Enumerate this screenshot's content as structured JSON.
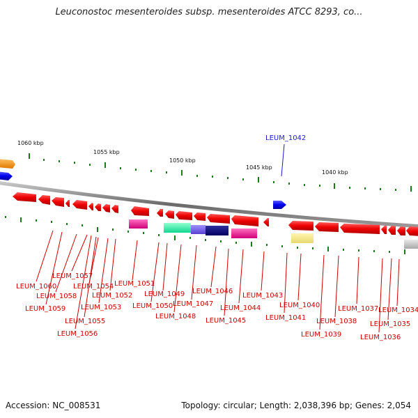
{
  "header": {
    "title": "Leuconostoc mesenteroides subsp. mesenteroides ATCC 8293, co..."
  },
  "footer": {
    "accession": "Accession: NC_008531",
    "topology": "Topology: circular; Length: 2,038,396 bp; Genes: 2,054"
  },
  "colors": {
    "forward_gene": "#1010ee",
    "reverse_gene": "#ee1111",
    "backbone": "#7a7a7a",
    "tick": "#1a7a1a",
    "label_red": "#cc0000",
    "label_blue": "#1a1acc"
  },
  "scale": {
    "ticks": [
      {
        "label": "1060 kbp"
      },
      {
        "label": "1055 kbp"
      },
      {
        "label": "1050 kbp"
      },
      {
        "label": "1045 kbp"
      },
      {
        "label": "1040 kbp"
      }
    ]
  },
  "genes": {
    "top_labels": [
      {
        "label": "LEUM_1042"
      }
    ],
    "bottom_labels": [
      {
        "label": "LEUM_1060"
      },
      {
        "label": "LEUM_1059"
      },
      {
        "label": "LEUM_1058"
      },
      {
        "label": "LEUM_1057"
      },
      {
        "label": "LEUM_1056"
      },
      {
        "label": "LEUM_1055"
      },
      {
        "label": "LEUM_1054"
      },
      {
        "label": "LEUM_1053"
      },
      {
        "label": "LEUM_1052"
      },
      {
        "label": "LEUM_1051"
      },
      {
        "label": "LEUM_1050"
      },
      {
        "label": "LEUM_1049"
      },
      {
        "label": "LEUM_1048"
      },
      {
        "label": "LEUM_1047"
      },
      {
        "label": "LEUM_1046"
      },
      {
        "label": "LEUM_1045"
      },
      {
        "label": "LEUM_1044"
      },
      {
        "label": "LEUM_1043"
      },
      {
        "label": "LEUM_1041"
      },
      {
        "label": "LEUM_1040"
      },
      {
        "label": "LEUM_1039"
      },
      {
        "label": "LEUM_1038"
      },
      {
        "label": "LEUM_1037"
      },
      {
        "label": "LEUM_1036"
      },
      {
        "label": "LEUM_1035"
      },
      {
        "label": "LEUM_1034"
      }
    ]
  }
}
